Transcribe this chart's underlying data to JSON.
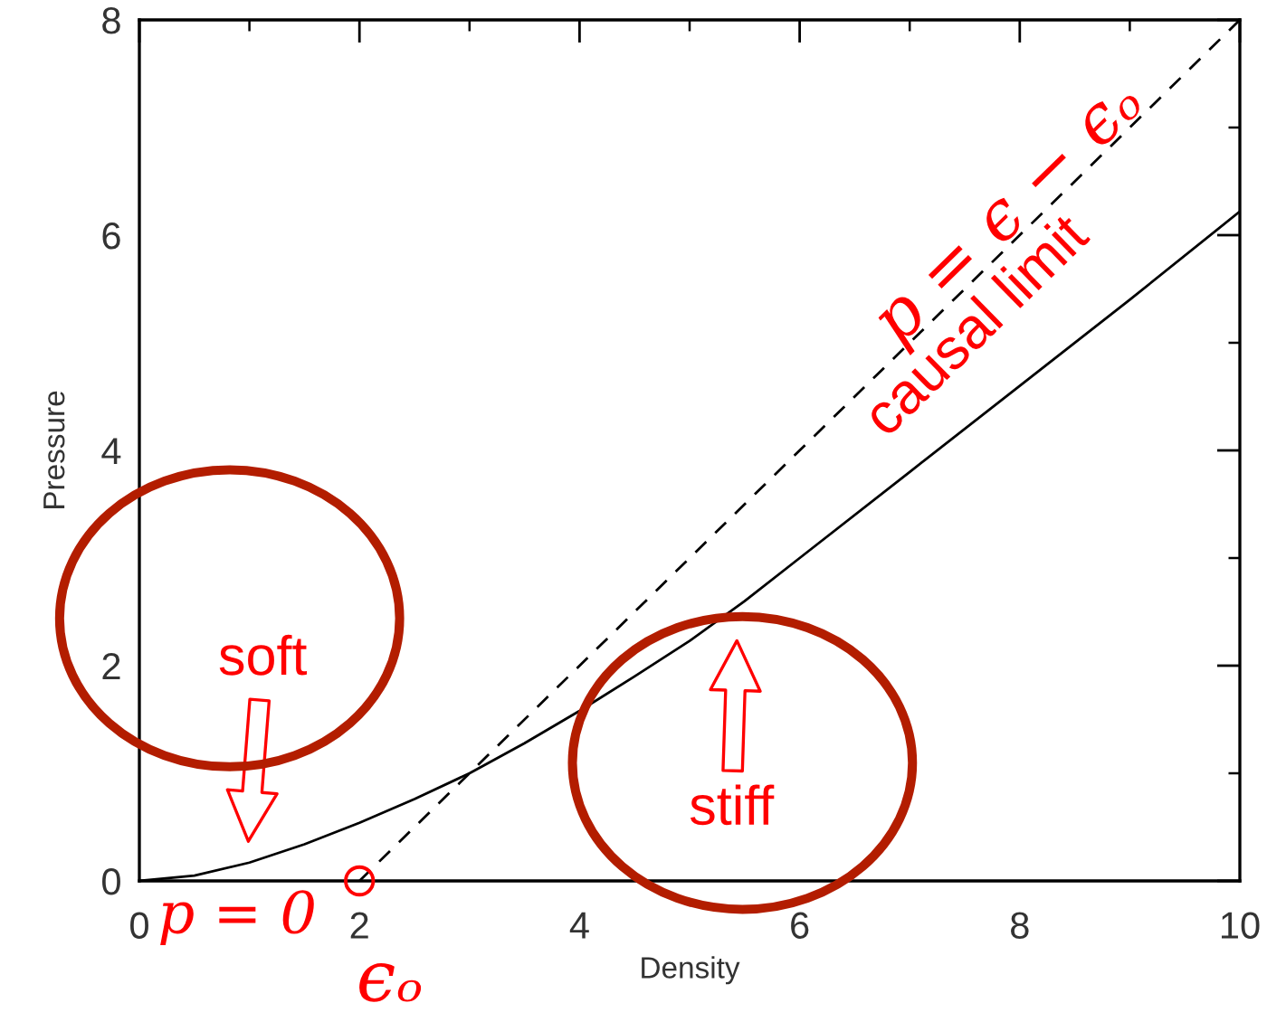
{
  "chart_data": {
    "type": "line",
    "xlabel": "Density",
    "ylabel": "Pressure",
    "xlim": [
      0,
      10
    ],
    "ylim": [
      0,
      8
    ],
    "xticks": [
      0,
      2,
      4,
      6,
      8,
      10
    ],
    "yticks": [
      0,
      2,
      4,
      6,
      8
    ],
    "series": [
      {
        "color": "#000000",
        "x": [
          0,
          0.5,
          1,
          1.5,
          2,
          2.5,
          3,
          3.5,
          4,
          4.5,
          5,
          5.5,
          6,
          7,
          8,
          9,
          10
        ],
        "values": [
          0,
          0.05,
          0.17,
          0.34,
          0.54,
          0.76,
          1.0,
          1.28,
          1.58,
          1.9,
          2.23,
          2.6,
          3.0,
          3.8,
          4.6,
          5.4,
          6.22
        ]
      },
      {
        "color": "#000000",
        "line_style": "dashed",
        "x": [
          2,
          10
        ],
        "values": [
          0,
          8
        ]
      },
      {
        "type": "scatter",
        "color": "#ff0000",
        "marker": "circle",
        "x": [
          2
        ],
        "values": [
          0
        ]
      }
    ],
    "annotations": [
      {
        "text": "p = ϵ − ϵₒ",
        "x": 7.9,
        "y": 5.9
      },
      {
        "text": "causal limit",
        "x": 7.6,
        "y": 5.6
      },
      "soft",
      "stiff",
      "p = 0",
      {
        "text": "ϵₒ",
        "x": 2,
        "y": 0
      }
    ]
  }
}
